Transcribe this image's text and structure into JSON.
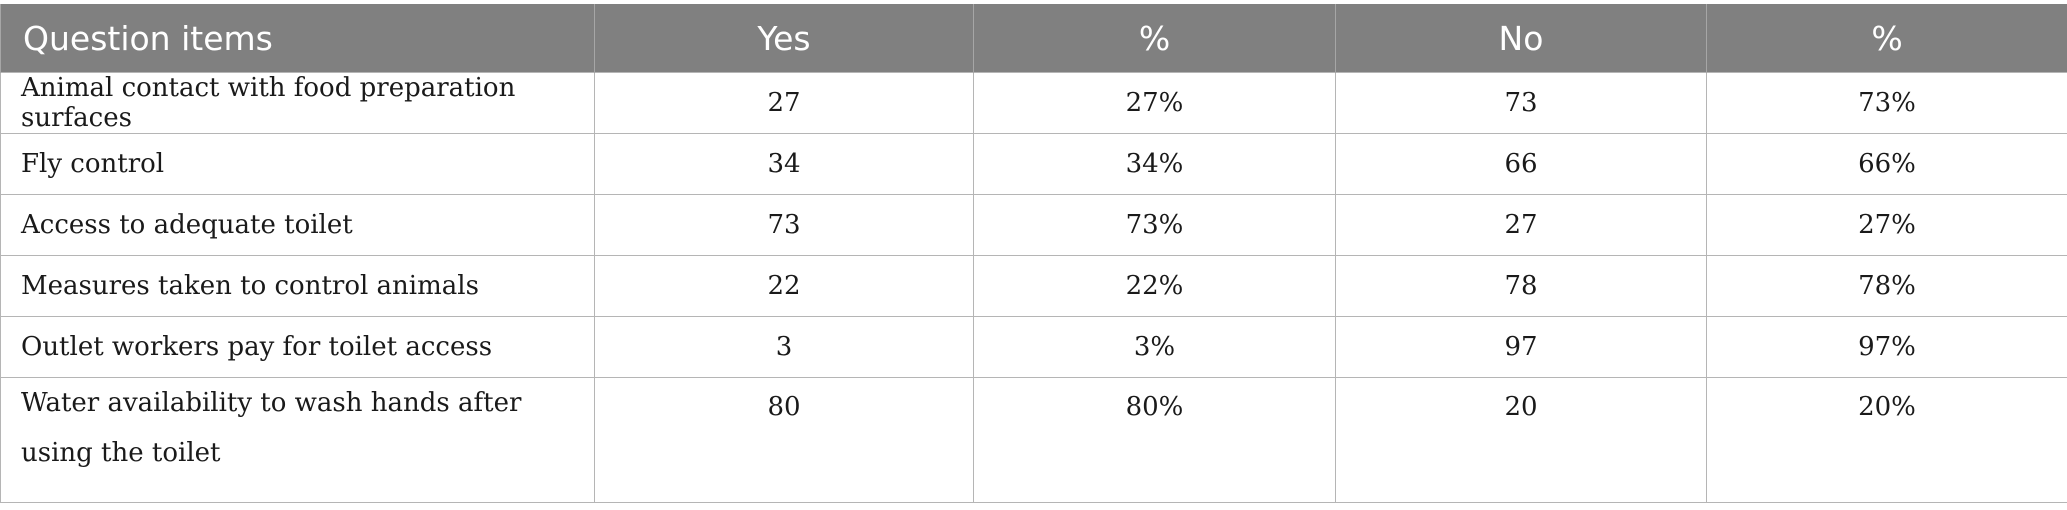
{
  "table": {
    "headers": [
      "Question items",
      "Yes",
      "%",
      "No",
      "%"
    ],
    "rows": [
      {
        "item": "Animal contact with food preparation surfaces",
        "yes": "27",
        "yes_pct": "27%",
        "no": "73",
        "no_pct": "73%"
      },
      {
        "item": "Fly control",
        "yes": "34",
        "yes_pct": "34%",
        "no": "66",
        "no_pct": "66%"
      },
      {
        "item": "Access to adequate toilet",
        "yes": "73",
        "yes_pct": "73%",
        "no": "27",
        "no_pct": "27%"
      },
      {
        "item": "Measures taken to control animals",
        "yes": "22",
        "yes_pct": "22%",
        "no": "78",
        "no_pct": "78%"
      },
      {
        "item": "Outlet workers pay for toilet access",
        "yes": "3",
        "yes_pct": "3%",
        "no": "97",
        "no_pct": "97%"
      },
      {
        "item": "Water availability to wash hands after using the toilet",
        "yes": "80",
        "yes_pct": "80%",
        "no": "20",
        "no_pct": "20%"
      }
    ]
  },
  "colors": {
    "header_bg": "#808080",
    "header_text": "#ffffff",
    "grid": "#b5b5b5"
  }
}
